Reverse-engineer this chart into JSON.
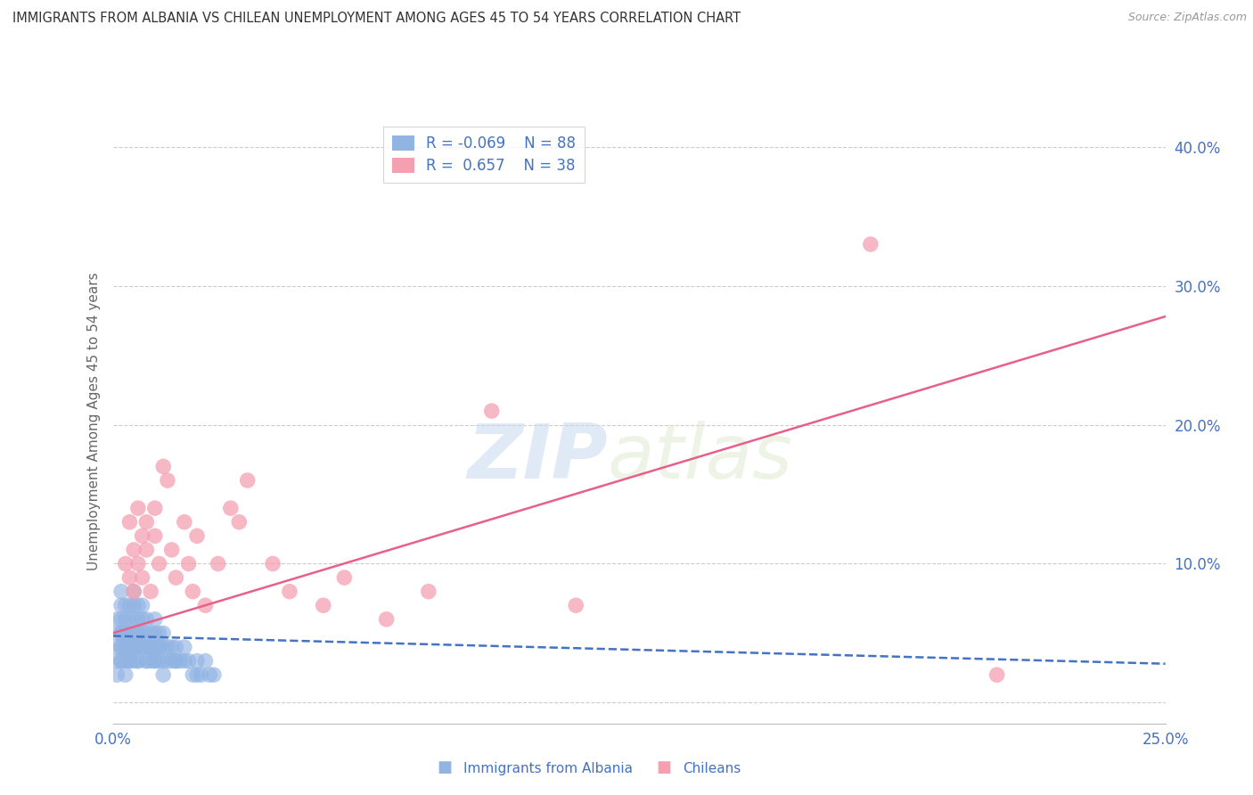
{
  "title": "IMMIGRANTS FROM ALBANIA VS CHILEAN UNEMPLOYMENT AMONG AGES 45 TO 54 YEARS CORRELATION CHART",
  "source": "Source: ZipAtlas.com",
  "xlabel_legend1": "Immigrants from Albania",
  "xlabel_legend2": "Chileans",
  "ylabel": "Unemployment Among Ages 45 to 54 years",
  "xmin": 0.0,
  "xmax": 0.25,
  "ymin": -0.015,
  "ymax": 0.42,
  "yticks": [
    0.0,
    0.1,
    0.2,
    0.3,
    0.4
  ],
  "ytick_labels": [
    "",
    "10.0%",
    "20.0%",
    "30.0%",
    "40.0%"
  ],
  "xticks": [
    0.0,
    0.05,
    0.1,
    0.15,
    0.2,
    0.25
  ],
  "xtick_labels": [
    "0.0%",
    "",
    "",
    "",
    "",
    "25.0%"
  ],
  "R1": -0.069,
  "N1": 88,
  "R2": 0.657,
  "N2": 38,
  "color1": "#92b4e3",
  "color2": "#f4a0b0",
  "trendline1_color": "#4472c4",
  "trendline2_color": "#e8608a",
  "watermark_zip": "ZIP",
  "watermark_atlas": "atlas",
  "background_color": "#ffffff",
  "grid_color": "#cccccc",
  "axis_label_color": "#4472c4",
  "title_color": "#333333",
  "albania_x": [
    0.001,
    0.001,
    0.001,
    0.001,
    0.002,
    0.002,
    0.002,
    0.002,
    0.002,
    0.002,
    0.002,
    0.003,
    0.003,
    0.003,
    0.003,
    0.003,
    0.003,
    0.004,
    0.004,
    0.004,
    0.004,
    0.004,
    0.005,
    0.005,
    0.005,
    0.005,
    0.005,
    0.005,
    0.006,
    0.006,
    0.006,
    0.006,
    0.006,
    0.007,
    0.007,
    0.007,
    0.007,
    0.008,
    0.008,
    0.008,
    0.008,
    0.009,
    0.009,
    0.009,
    0.01,
    0.01,
    0.01,
    0.01,
    0.011,
    0.011,
    0.011,
    0.012,
    0.012,
    0.012,
    0.013,
    0.013,
    0.014,
    0.014,
    0.015,
    0.015,
    0.016,
    0.017,
    0.017,
    0.018,
    0.019,
    0.02,
    0.021,
    0.022,
    0.023,
    0.024,
    0.001,
    0.002,
    0.002,
    0.003,
    0.003,
    0.004,
    0.004,
    0.005,
    0.006,
    0.006,
    0.007,
    0.008,
    0.009,
    0.01,
    0.011,
    0.012,
    0.015,
    0.02
  ],
  "albania_y": [
    0.05,
    0.04,
    0.03,
    0.06,
    0.06,
    0.04,
    0.03,
    0.05,
    0.04,
    0.07,
    0.08,
    0.05,
    0.04,
    0.06,
    0.03,
    0.07,
    0.05,
    0.06,
    0.04,
    0.05,
    0.07,
    0.03,
    0.06,
    0.08,
    0.05,
    0.04,
    0.07,
    0.03,
    0.07,
    0.05,
    0.04,
    0.06,
    0.03,
    0.06,
    0.05,
    0.04,
    0.07,
    0.05,
    0.04,
    0.06,
    0.03,
    0.05,
    0.04,
    0.03,
    0.05,
    0.04,
    0.03,
    0.06,
    0.05,
    0.04,
    0.03,
    0.04,
    0.05,
    0.03,
    0.04,
    0.03,
    0.04,
    0.03,
    0.04,
    0.03,
    0.03,
    0.04,
    0.03,
    0.03,
    0.02,
    0.03,
    0.02,
    0.03,
    0.02,
    0.02,
    0.02,
    0.05,
    0.03,
    0.04,
    0.02,
    0.05,
    0.03,
    0.04,
    0.05,
    0.03,
    0.04,
    0.03,
    0.04,
    0.03,
    0.04,
    0.02,
    0.03,
    0.02
  ],
  "chilean_x": [
    0.003,
    0.004,
    0.004,
    0.005,
    0.005,
    0.006,
    0.006,
    0.007,
    0.007,
    0.008,
    0.008,
    0.009,
    0.01,
    0.01,
    0.011,
    0.012,
    0.013,
    0.014,
    0.015,
    0.017,
    0.018,
    0.019,
    0.02,
    0.022,
    0.025,
    0.028,
    0.03,
    0.032,
    0.038,
    0.042,
    0.05,
    0.055,
    0.065,
    0.075,
    0.09,
    0.11,
    0.18,
    0.21
  ],
  "chilean_y": [
    0.1,
    0.09,
    0.13,
    0.08,
    0.11,
    0.1,
    0.14,
    0.12,
    0.09,
    0.13,
    0.11,
    0.08,
    0.12,
    0.14,
    0.1,
    0.17,
    0.16,
    0.11,
    0.09,
    0.13,
    0.1,
    0.08,
    0.12,
    0.07,
    0.1,
    0.14,
    0.13,
    0.16,
    0.1,
    0.08,
    0.07,
    0.09,
    0.06,
    0.08,
    0.21,
    0.07,
    0.33,
    0.02
  ],
  "trendline1_x": [
    0.0,
    0.25
  ],
  "trendline1_y": [
    0.048,
    0.028
  ],
  "trendline2_x": [
    0.0,
    0.25
  ],
  "trendline2_y": [
    0.05,
    0.278
  ]
}
